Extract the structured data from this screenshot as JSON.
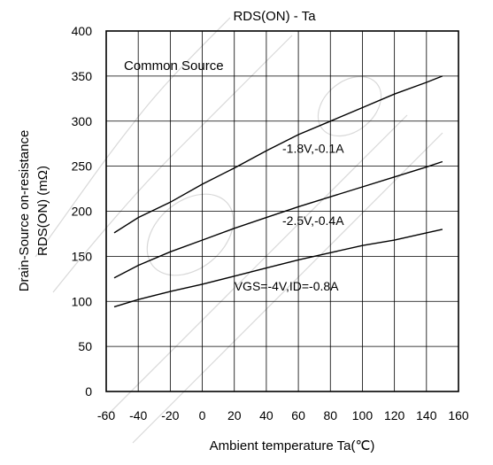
{
  "chart_data": {
    "type": "line",
    "title": "RDS(ON) - Ta",
    "xlabel": "Ambient temperature Ta(℃)",
    "ylabel_line1": "Drain-Source on-resistance",
    "ylabel_line2": "RDS(ON) (mΩ)",
    "annotation": "Common Source",
    "xlim": [
      -60,
      160
    ],
    "ylim": [
      0,
      400
    ],
    "xticks": [
      -60,
      -40,
      -20,
      0,
      20,
      40,
      60,
      80,
      100,
      120,
      140,
      160
    ],
    "yticks": [
      0,
      50,
      100,
      150,
      200,
      250,
      300,
      350,
      400
    ],
    "x_gridlines": [
      -40,
      -20,
      0,
      20,
      40,
      60,
      80,
      100,
      120,
      140
    ],
    "y_gridlines": [
      50,
      100,
      150,
      200,
      250,
      300,
      350
    ],
    "grid": true,
    "series": [
      {
        "name": "-1.8V,-0.1A",
        "label_at": [
          50,
          265
        ],
        "points": [
          [
            -55,
            176
          ],
          [
            -40,
            193
          ],
          [
            -20,
            210
          ],
          [
            0,
            230
          ],
          [
            20,
            248
          ],
          [
            40,
            267
          ],
          [
            60,
            285
          ],
          [
            80,
            300
          ],
          [
            100,
            315
          ],
          [
            120,
            330
          ],
          [
            140,
            343
          ],
          [
            150,
            350
          ]
        ]
      },
      {
        "name": "-2.5V,-0.4A",
        "label_at": [
          50,
          185
        ],
        "points": [
          [
            -55,
            126
          ],
          [
            -40,
            140
          ],
          [
            -20,
            155
          ],
          [
            0,
            168
          ],
          [
            20,
            181
          ],
          [
            40,
            193
          ],
          [
            60,
            205
          ],
          [
            80,
            216
          ],
          [
            100,
            227
          ],
          [
            120,
            238
          ],
          [
            140,
            249
          ],
          [
            150,
            255
          ]
        ]
      },
      {
        "name": "VGS=-4V,ID=-0.8A",
        "label_at": [
          20,
          112
        ],
        "points": [
          [
            -55,
            94
          ],
          [
            -40,
            102
          ],
          [
            -20,
            111
          ],
          [
            0,
            119
          ],
          [
            20,
            128
          ],
          [
            40,
            137
          ],
          [
            60,
            146
          ],
          [
            80,
            154
          ],
          [
            100,
            162
          ],
          [
            120,
            168
          ],
          [
            140,
            176
          ],
          [
            150,
            180
          ]
        ]
      }
    ]
  }
}
